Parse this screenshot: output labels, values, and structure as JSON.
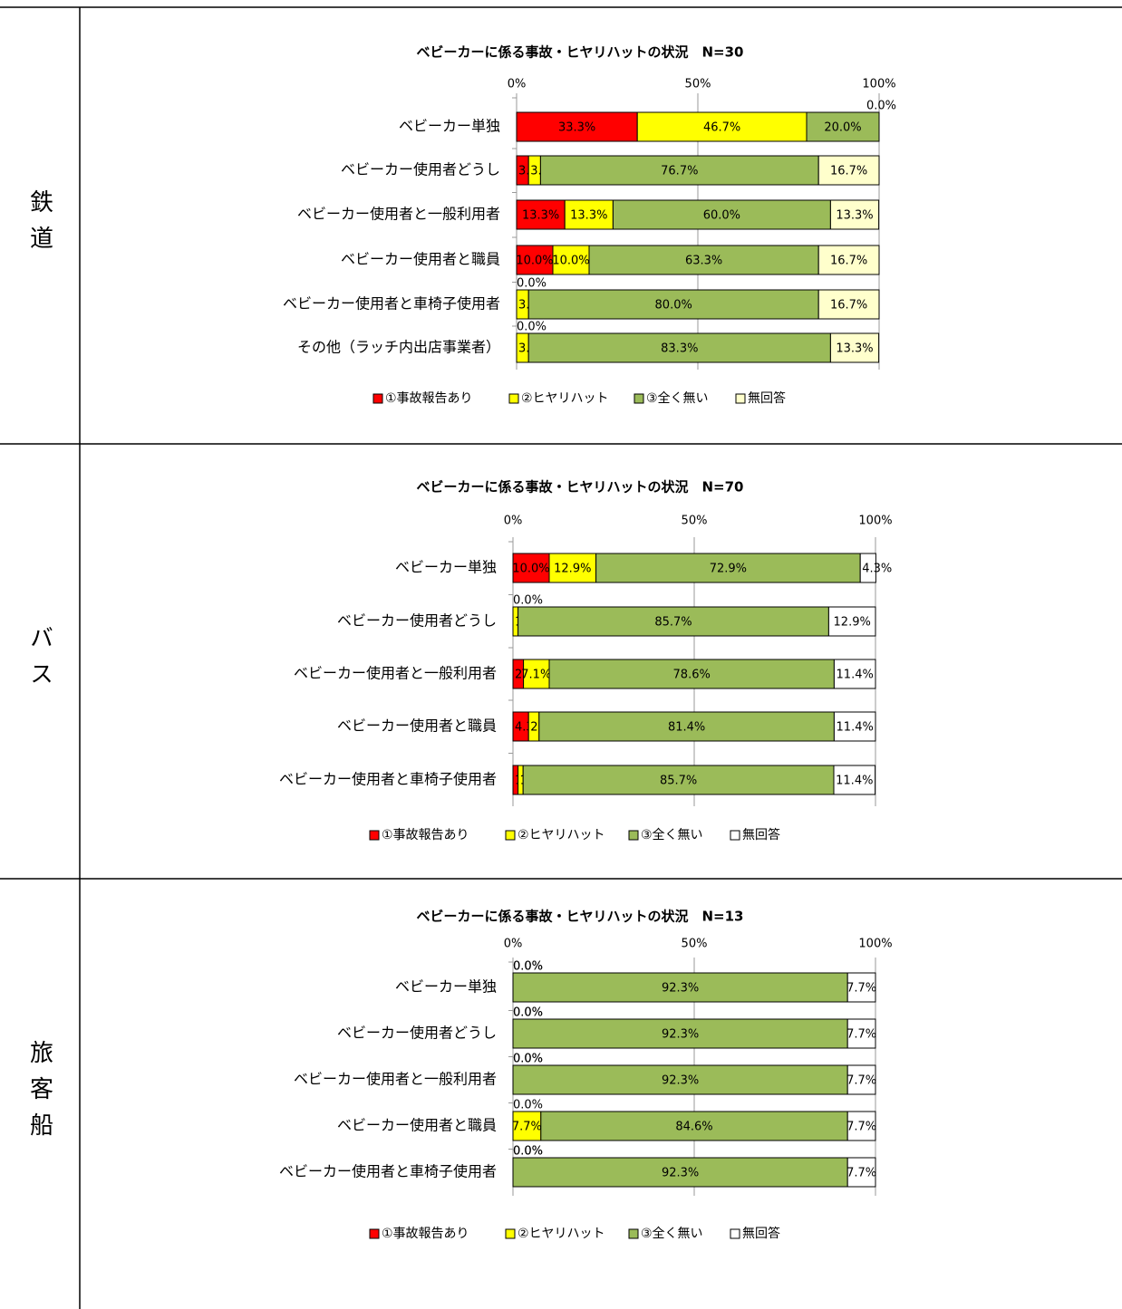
{
  "row_labels": [
    "鉄道",
    "バス",
    "旅客船"
  ],
  "chart_data": [
    {
      "type": "stacked-bar-horizontal",
      "title": "ベビーカーに係る事故・ヒヤリハットの状況　N=30",
      "categories": [
        "ベビーカー単独",
        "ベビーカー使用者どうし",
        "ベビーカー使用者と一般利用者",
        "ベビーカー使用者と職員",
        "ベビーカー使用者と車椅子使用者",
        "その他（ラッチ内出店事業者）"
      ],
      "xlim": [
        0,
        100
      ],
      "xticks": [
        {
          "value": 0,
          "label": "0%"
        },
        {
          "value": 50,
          "label": "50%"
        },
        {
          "value": 100,
          "label": "100%"
        }
      ],
      "grid": true,
      "series": [
        {
          "name": "①事故報告あり",
          "color": "#ff0000",
          "values": [
            33.3,
            3.3,
            13.3,
            10.0,
            0.0,
            0.0
          ],
          "value_labels": [
            "33.3%",
            "3.3%",
            "13.3%",
            "10.0%",
            "0.0%",
            "0.0%"
          ]
        },
        {
          "name": "②ヒヤリハット",
          "color": "#ffff00",
          "values": [
            46.7,
            3.3,
            13.3,
            10.0,
            3.3,
            3.3
          ],
          "value_labels": [
            "46.7%",
            "3.3%",
            "13.3%",
            "10.0%",
            "3.3%",
            "3.3%"
          ]
        },
        {
          "name": "③全く無い",
          "color": "#9bbb59",
          "values": [
            20.0,
            76.7,
            60.0,
            63.3,
            80.0,
            83.3
          ],
          "value_labels": [
            "20.0%",
            "76.7%",
            "60.0%",
            "63.3%",
            "80.0%",
            "83.3%"
          ]
        },
        {
          "name": "無回答",
          "color": "#ffffcc",
          "values": [
            0.0,
            16.7,
            13.3,
            16.7,
            16.7,
            13.3
          ],
          "value_labels": [
            "0.0%",
            "16.7%",
            "13.3%",
            "16.7%",
            "16.7%",
            "13.3%"
          ]
        }
      ]
    },
    {
      "type": "stacked-bar-horizontal",
      "title": "ベビーカーに係る事故・ヒヤリハットの状況　N=70",
      "categories": [
        "ベビーカー単独",
        "ベビーカー使用者どうし",
        "ベビーカー使用者と一般利用者",
        "ベビーカー使用者と職員",
        "ベビーカー使用者と車椅子使用者"
      ],
      "xlim": [
        0,
        100
      ],
      "xticks": [
        {
          "value": 0,
          "label": "0%"
        },
        {
          "value": 50,
          "label": "50%"
        },
        {
          "value": 100,
          "label": "100%"
        }
      ],
      "grid": true,
      "series": [
        {
          "name": "①事故報告あり",
          "color": "#ff0000",
          "values": [
            10.0,
            0.0,
            2.9,
            4.3,
            1.4
          ],
          "value_labels": [
            "10.0%",
            "0.0%",
            "2.9%",
            "4.3%",
            "1.4%"
          ]
        },
        {
          "name": "②ヒヤリハット",
          "color": "#ffff00",
          "values": [
            12.9,
            1.4,
            7.1,
            2.9,
            1.4
          ],
          "value_labels": [
            "12.9%",
            "1.4%",
            "7.1%",
            "2.9%",
            "1.4%"
          ]
        },
        {
          "name": "③全く無い",
          "color": "#9bbb59",
          "values": [
            72.9,
            85.7,
            78.6,
            81.4,
            85.7
          ],
          "value_labels": [
            "72.9%",
            "85.7%",
            "78.6%",
            "81.4%",
            "85.7%"
          ]
        },
        {
          "name": "無回答",
          "color": "#ffffff",
          "values": [
            4.3,
            12.9,
            11.4,
            11.4,
            11.4
          ],
          "value_labels": [
            "4.3%",
            "12.9%",
            "11.4%",
            "11.4%",
            "11.4%"
          ]
        }
      ]
    },
    {
      "type": "stacked-bar-horizontal",
      "title": "ベビーカーに係る事故・ヒヤリハットの状況　N=13",
      "categories": [
        "ベビーカー単独",
        "ベビーカー使用者どうし",
        "ベビーカー使用者と一般利用者",
        "ベビーカー使用者と職員",
        "ベビーカー使用者と車椅子使用者"
      ],
      "xlim": [
        0,
        100
      ],
      "xticks": [
        {
          "value": 0,
          "label": "0%"
        },
        {
          "value": 50,
          "label": "50%"
        },
        {
          "value": 100,
          "label": "100%"
        }
      ],
      "grid": true,
      "series": [
        {
          "name": "①事故報告あり",
          "color": "#ff0000",
          "values": [
            0.0,
            0.0,
            0.0,
            0.0,
            0.0
          ],
          "value_labels": [
            "0.0%",
            "0.0%",
            "0.0%",
            "0.0%",
            "0.0%"
          ]
        },
        {
          "name": "②ヒヤリハット",
          "color": "#ffff00",
          "values": [
            0.0,
            0.0,
            0.0,
            7.7,
            0.0
          ],
          "value_labels": [
            "0.0%",
            "0.0%",
            "0.0%",
            "7.7%",
            "0.0%"
          ]
        },
        {
          "name": "③全く無い",
          "color": "#9bbb59",
          "values": [
            92.3,
            92.3,
            92.3,
            84.6,
            92.3
          ],
          "value_labels": [
            "92.3%",
            "92.3%",
            "92.3%",
            "84.6%",
            "92.3%"
          ]
        },
        {
          "name": "無回答",
          "color": "#ffffff",
          "values": [
            7.7,
            7.7,
            7.7,
            7.7,
            7.7
          ],
          "value_labels": [
            "7.7%",
            "7.7%",
            "7.7%",
            "7.7%",
            "7.7%"
          ]
        }
      ]
    }
  ]
}
